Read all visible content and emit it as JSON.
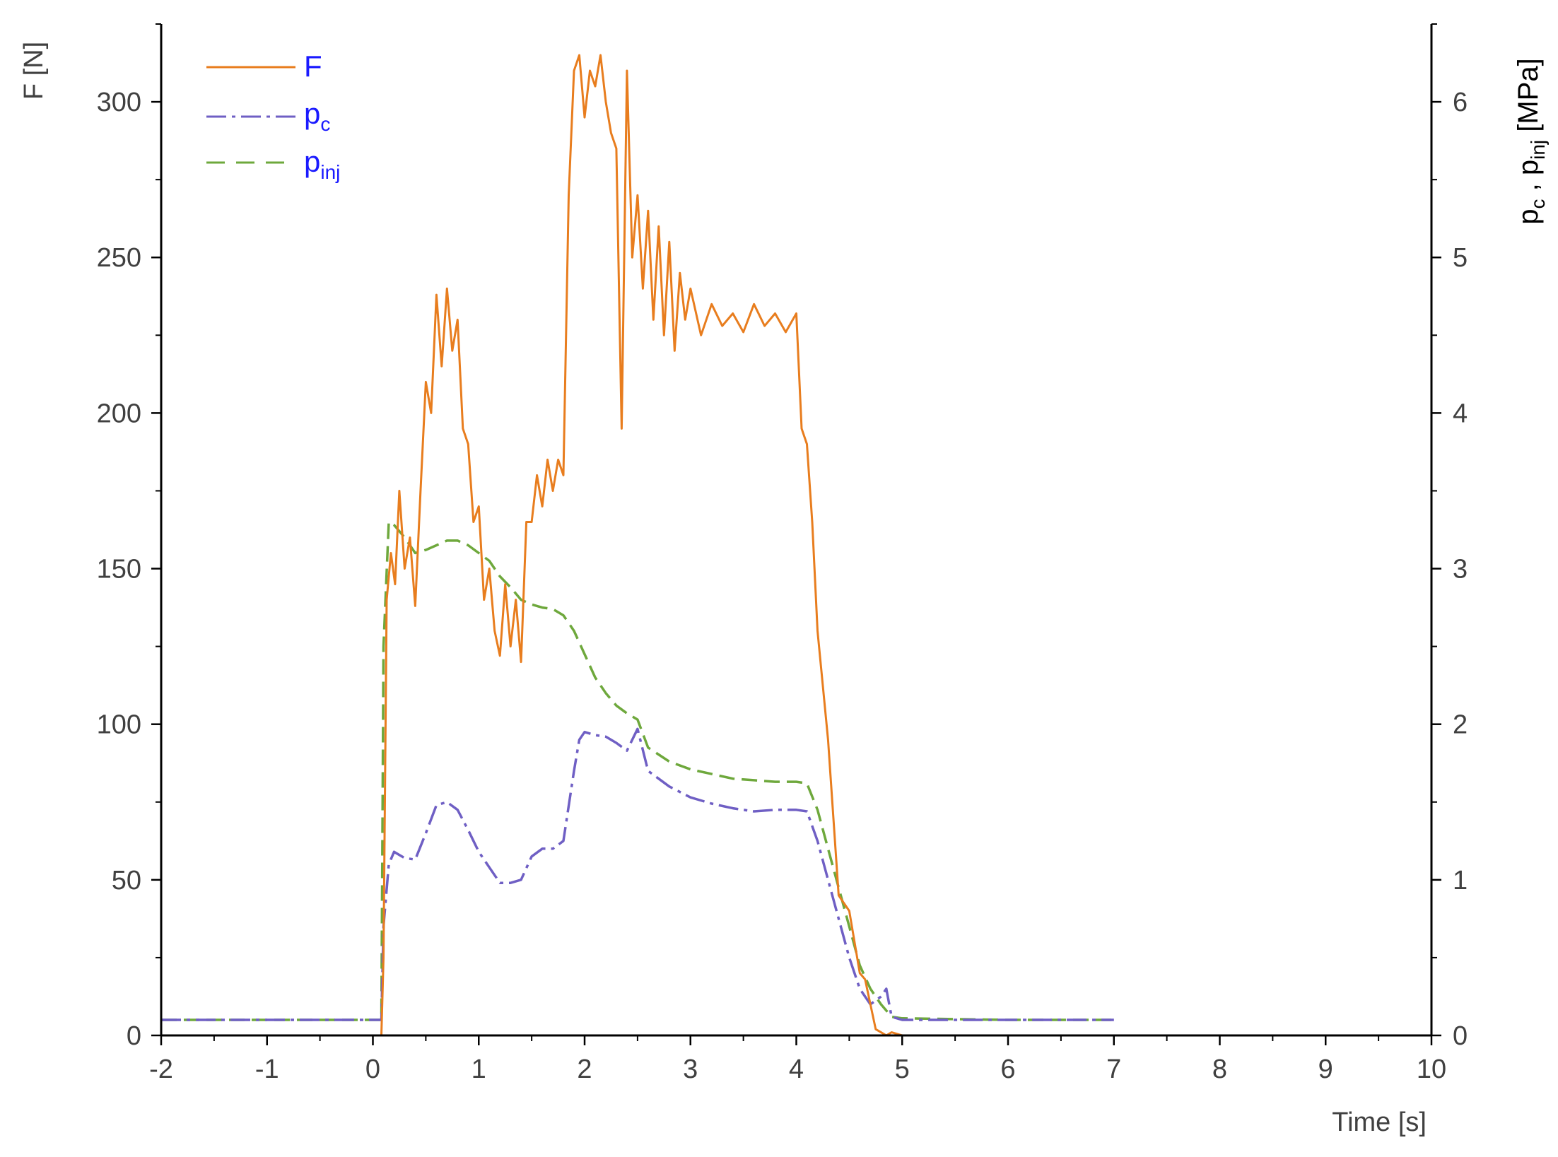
{
  "chart_data": {
    "type": "line",
    "xlabel": "Time [s]",
    "ylabel_left": "F [N]",
    "ylabel_right": {
      "parts": [
        "p",
        "c",
        " , ",
        "p",
        "inj",
        "  [MPa]"
      ]
    },
    "xlim": [
      -2,
      10
    ],
    "ylim_left": [
      0,
      325
    ],
    "ylim_right": [
      0,
      6.5
    ],
    "x_ticks": [
      "-2",
      "-1",
      "0",
      "1",
      "2",
      "3",
      "4",
      "5",
      "6",
      "7",
      "8",
      "9",
      "10"
    ],
    "y_left_ticks": [
      "0",
      "50",
      "100",
      "150",
      "200",
      "250",
      "300"
    ],
    "y_right_ticks": [
      "0",
      "1",
      "2",
      "3",
      "4",
      "5",
      "6"
    ],
    "grid": false,
    "legend_position": "top-left",
    "series": [
      {
        "name": "F",
        "axis": "left",
        "color": "#e87d1e",
        "style": "solid",
        "x": [
          -2,
          0.08,
          0.1,
          0.13,
          0.17,
          0.21,
          0.25,
          0.3,
          0.35,
          0.4,
          0.45,
          0.5,
          0.55,
          0.6,
          0.65,
          0.7,
          0.75,
          0.8,
          0.85,
          0.9,
          0.95,
          1.0,
          1.05,
          1.1,
          1.15,
          1.2,
          1.25,
          1.3,
          1.35,
          1.4,
          1.45,
          1.5,
          1.55,
          1.6,
          1.65,
          1.7,
          1.75,
          1.8,
          1.85,
          1.9,
          1.95,
          2.0,
          2.05,
          2.1,
          2.15,
          2.2,
          2.25,
          2.3,
          2.35,
          2.4,
          2.45,
          2.5,
          2.55,
          2.6,
          2.65,
          2.7,
          2.75,
          2.8,
          2.85,
          2.9,
          2.95,
          3.0,
          3.1,
          3.2,
          3.3,
          3.4,
          3.5,
          3.6,
          3.7,
          3.8,
          3.9,
          4.0,
          4.05,
          4.1,
          4.15,
          4.2,
          4.3,
          4.4,
          4.5,
          4.6,
          4.65,
          4.7,
          4.75,
          4.8,
          4.85,
          4.9,
          5.0,
          6.0,
          7.0
        ],
        "y": [
          0,
          0,
          25,
          140,
          155,
          145,
          175,
          150,
          160,
          138,
          175,
          210,
          200,
          238,
          215,
          240,
          220,
          230,
          195,
          190,
          165,
          170,
          140,
          150,
          130,
          122,
          145,
          125,
          140,
          120,
          165,
          165,
          180,
          170,
          185,
          175,
          185,
          180,
          270,
          310,
          315,
          295,
          310,
          305,
          315,
          300,
          290,
          285,
          195,
          310,
          250,
          270,
          240,
          265,
          230,
          260,
          225,
          255,
          220,
          245,
          230,
          240,
          225,
          235,
          228,
          232,
          226,
          235,
          228,
          232,
          226,
          232,
          195,
          190,
          165,
          130,
          95,
          45,
          40,
          20,
          18,
          10,
          2,
          1,
          0,
          1,
          0,
          0,
          0
        ]
      },
      {
        "name": "p",
        "name_sub": "c",
        "axis": "right",
        "color": "#6f5fc4",
        "style": "dashdot",
        "x": [
          -2,
          -1,
          0,
          0.08,
          0.1,
          0.15,
          0.2,
          0.25,
          0.3,
          0.4,
          0.5,
          0.6,
          0.7,
          0.8,
          0.9,
          1.0,
          1.1,
          1.2,
          1.3,
          1.4,
          1.5,
          1.6,
          1.7,
          1.8,
          1.9,
          1.95,
          2.0,
          2.1,
          2.2,
          2.3,
          2.4,
          2.5,
          2.6,
          2.8,
          3.0,
          3.2,
          3.4,
          3.6,
          3.8,
          4.0,
          4.1,
          4.2,
          4.3,
          4.4,
          4.5,
          4.6,
          4.7,
          4.8,
          4.85,
          4.9,
          5.0,
          6.0,
          7.0
        ],
        "y": [
          0.1,
          0.1,
          0.1,
          0.1,
          0.7,
          1.1,
          1.18,
          1.16,
          1.14,
          1.13,
          1.3,
          1.48,
          1.5,
          1.45,
          1.32,
          1.18,
          1.08,
          0.98,
          0.98,
          1.0,
          1.15,
          1.2,
          1.2,
          1.25,
          1.7,
          1.9,
          1.95,
          1.93,
          1.92,
          1.88,
          1.83,
          1.97,
          1.7,
          1.6,
          1.53,
          1.49,
          1.46,
          1.44,
          1.45,
          1.45,
          1.44,
          1.25,
          1.0,
          0.75,
          0.5,
          0.3,
          0.2,
          0.25,
          0.3,
          0.12,
          0.1,
          0.1,
          0.1
        ]
      },
      {
        "name": "p",
        "name_sub": "inj",
        "axis": "right",
        "color": "#6ea83c",
        "style": "dashed",
        "x": [
          -2,
          -1,
          0,
          0.08,
          0.1,
          0.15,
          0.2,
          0.3,
          0.4,
          0.5,
          0.6,
          0.7,
          0.8,
          0.9,
          1.0,
          1.1,
          1.2,
          1.3,
          1.4,
          1.5,
          1.6,
          1.7,
          1.8,
          1.85,
          1.9,
          2.0,
          2.1,
          2.2,
          2.3,
          2.4,
          2.5,
          2.6,
          2.8,
          3.0,
          3.2,
          3.4,
          3.6,
          3.8,
          4.0,
          4.1,
          4.2,
          4.3,
          4.4,
          4.5,
          4.6,
          4.7,
          4.8,
          4.9,
          5.0,
          6.0,
          7.0
        ],
        "y": [
          0.1,
          0.1,
          0.1,
          0.1,
          2.5,
          3.3,
          3.28,
          3.2,
          3.1,
          3.12,
          3.15,
          3.18,
          3.18,
          3.15,
          3.1,
          3.05,
          2.95,
          2.88,
          2.8,
          2.77,
          2.75,
          2.74,
          2.7,
          2.65,
          2.6,
          2.45,
          2.3,
          2.2,
          2.12,
          2.07,
          2.03,
          1.85,
          1.76,
          1.71,
          1.68,
          1.65,
          1.64,
          1.63,
          1.63,
          1.62,
          1.45,
          1.2,
          0.95,
          0.7,
          0.45,
          0.3,
          0.2,
          0.12,
          0.11,
          0.1,
          0.1
        ]
      }
    ]
  }
}
